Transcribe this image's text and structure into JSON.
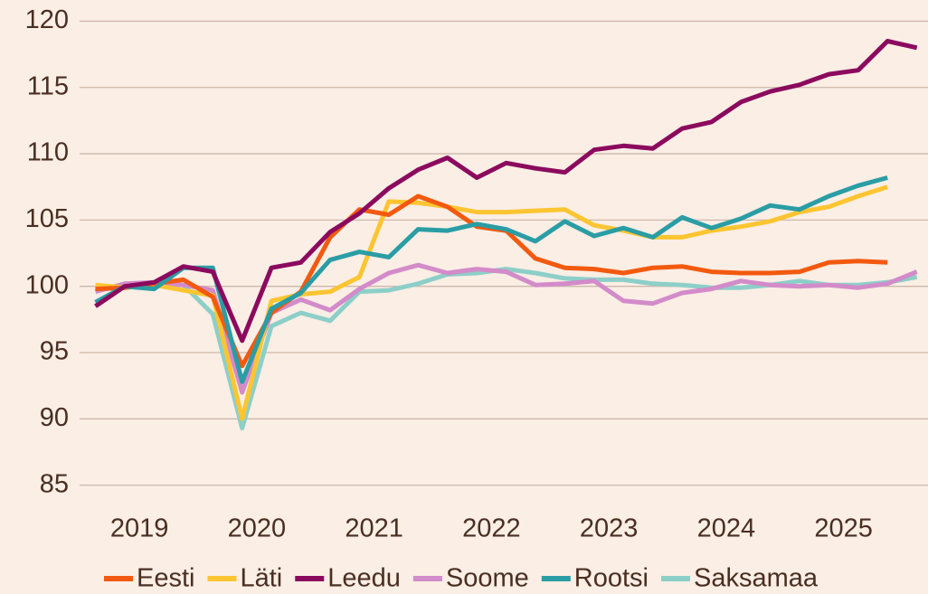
{
  "chart_data": {
    "type": "line",
    "x": [
      2019.125,
      2019.375,
      2019.625,
      2019.875,
      2020.125,
      2020.375,
      2020.625,
      2020.875,
      2021.125,
      2021.375,
      2021.625,
      2021.875,
      2022.125,
      2022.375,
      2022.625,
      2022.875,
      2023.125,
      2023.375,
      2023.625,
      2023.875,
      2024.125,
      2024.375,
      2024.625,
      2024.875,
      2025.125,
      2025.375,
      2025.625,
      2025.875,
      2026.125
    ],
    "xlim": [
      2018.99,
      2026.22
    ],
    "xticks": [
      {
        "value": 2019.5,
        "label": "2019"
      },
      {
        "value": 2020.5,
        "label": "2020"
      },
      {
        "value": 2021.5,
        "label": "2021"
      },
      {
        "value": 2022.5,
        "label": "2022"
      },
      {
        "value": 2023.5,
        "label": "2023"
      },
      {
        "value": 2024.5,
        "label": "2024"
      },
      {
        "value": 2025.5,
        "label": "2025"
      }
    ],
    "ylim": [
      83.2,
      121.6
    ],
    "yticks": [
      85,
      90,
      95,
      100,
      105,
      110,
      115,
      120
    ],
    "grid": true,
    "legend": "bottom",
    "series": [
      {
        "name": "Eesti",
        "color": "#f25a0f",
        "values": [
          99.8,
          99.9,
          100.2,
          100.5,
          99.2,
          94.0,
          98.0,
          99.6,
          103.7,
          105.8,
          105.4,
          106.8,
          106.0,
          104.5,
          104.2,
          102.1,
          101.4,
          101.3,
          101.0,
          101.4,
          101.5,
          101.1,
          101.0,
          101.0,
          101.1,
          101.8,
          101.9,
          101.8,
          null
        ]
      },
      {
        "name": "Läti",
        "color": "#fcc531",
        "values": [
          100.1,
          99.9,
          100.1,
          99.7,
          99.3,
          90.0,
          98.9,
          99.4,
          99.6,
          100.7,
          106.4,
          106.3,
          106.0,
          105.6,
          105.6,
          105.7,
          105.8,
          104.6,
          104.2,
          103.7,
          103.7,
          104.2,
          104.5,
          104.9,
          105.6,
          106.0,
          106.8,
          107.5,
          null
        ]
      },
      {
        "name": "Leedu",
        "color": "#8b0a5e",
        "values": [
          98.5,
          100.0,
          100.3,
          101.5,
          101.1,
          95.9,
          101.4,
          101.8,
          104.1,
          105.5,
          107.4,
          108.8,
          109.7,
          108.2,
          109.3,
          108.9,
          108.6,
          110.3,
          110.6,
          110.4,
          111.9,
          112.4,
          113.9,
          114.7,
          115.2,
          116.0,
          116.3,
          118.5,
          118.0
        ]
      },
      {
        "name": "Soome",
        "color": "#d38bc9",
        "values": [
          99.6,
          100.2,
          100.3,
          100.1,
          99.7,
          92.0,
          98.0,
          99.0,
          98.2,
          99.8,
          101.0,
          101.6,
          101.0,
          101.3,
          101.1,
          100.1,
          100.2,
          100.4,
          98.9,
          98.7,
          99.5,
          99.8,
          100.4,
          100.1,
          100.0,
          100.1,
          99.9,
          100.2,
          101.1
        ]
      },
      {
        "name": "Rootsi",
        "color": "#2a9da5",
        "values": [
          98.8,
          100.0,
          99.8,
          101.4,
          101.4,
          92.8,
          98.3,
          99.5,
          102.0,
          102.6,
          102.2,
          104.3,
          104.2,
          104.7,
          104.3,
          103.4,
          104.9,
          103.8,
          104.4,
          103.7,
          105.2,
          104.4,
          105.1,
          106.1,
          105.8,
          106.8,
          107.6,
          108.2,
          null
        ]
      },
      {
        "name": "Saksamaa",
        "color": "#8dcfc8",
        "values": [
          99.7,
          100.0,
          100.2,
          100.1,
          97.9,
          89.3,
          97.0,
          98.0,
          97.4,
          99.6,
          99.7,
          100.2,
          100.9,
          101.0,
          101.3,
          101.0,
          100.6,
          100.5,
          100.5,
          100.2,
          100.1,
          99.9,
          99.9,
          100.1,
          100.4,
          100.1,
          100.1,
          100.3,
          100.7
        ]
      }
    ]
  }
}
